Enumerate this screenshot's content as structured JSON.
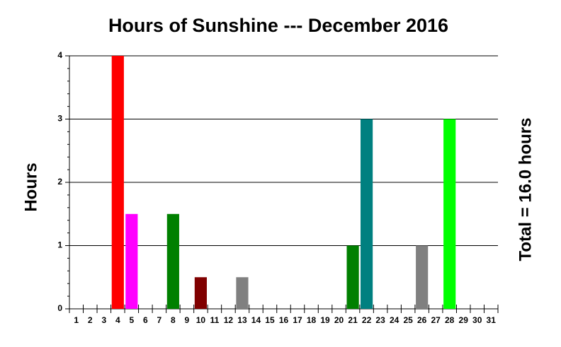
{
  "chart_data": {
    "type": "bar",
    "title": "Hours of Sunshine --- December 2016",
    "y_label": "Hours",
    "annotation": "Total = 16.0 hours",
    "categories": [
      "1",
      "2",
      "3",
      "4",
      "5",
      "6",
      "7",
      "8",
      "9",
      "10",
      "11",
      "12",
      "13",
      "14",
      "15",
      "16",
      "17",
      "18",
      "19",
      "20",
      "21",
      "22",
      "23",
      "24",
      "25",
      "26",
      "27",
      "28",
      "29",
      "30",
      "31"
    ],
    "values": [
      0,
      0,
      0,
      4,
      1.5,
      0,
      0,
      1.5,
      0,
      0.5,
      0,
      0,
      0.5,
      0,
      0,
      0,
      0,
      0,
      0,
      0,
      1,
      3,
      0,
      0,
      0,
      1,
      0,
      3,
      0,
      0,
      0
    ],
    "colors": [
      null,
      null,
      null,
      "#ff0000",
      "#ff00ff",
      null,
      null,
      "#008000",
      null,
      "#800000",
      null,
      null,
      "#808080",
      null,
      null,
      null,
      null,
      null,
      null,
      null,
      "#008000",
      "#008080",
      null,
      null,
      null,
      "#808080",
      null,
      "#00ff00",
      null,
      null,
      null
    ],
    "ylim": [
      0,
      4
    ],
    "yticks": [
      0,
      1,
      2,
      3,
      4
    ],
    "minor_yticks": [
      0.2,
      0.4,
      0.6,
      0.8,
      1.2,
      1.4,
      1.6,
      1.8,
      2.2,
      2.4,
      2.6,
      2.8,
      3.2,
      3.4,
      3.6,
      3.8
    ],
    "grid": true
  }
}
